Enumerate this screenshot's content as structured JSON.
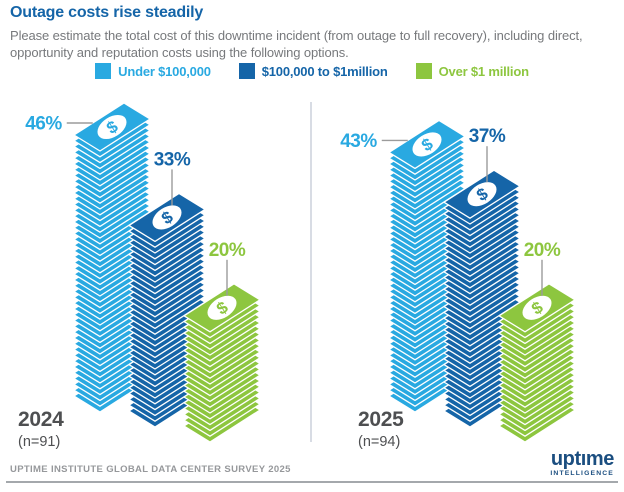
{
  "header": {
    "title": "Outage costs rise steadily",
    "subtitle": "Please estimate the total cost of this downtime incident (from outage to full recovery), including direct, opportunity and reputation costs using the following options."
  },
  "legend": [
    {
      "label": "Under $100,000",
      "color": "#29A9E1"
    },
    {
      "label": "$100,000 to $1million",
      "color": "#1565A8"
    },
    {
      "label": "Over $1 million",
      "color": "#8DC63F"
    }
  ],
  "chart_data": {
    "type": "bar",
    "variant": "isometric-money-stacks",
    "title": "Outage costs rise steadily",
    "unit": "%",
    "categories": [
      "Under $100,000",
      "$100,000 to $1million",
      "Over $1 million"
    ],
    "colors": [
      "#29A9E1",
      "#1565A8",
      "#8DC63F"
    ],
    "series": [
      {
        "name": "2024",
        "n_label": "(n=91)",
        "values": [
          46,
          33,
          20
        ]
      },
      {
        "name": "2025",
        "n_label": "(n=94)",
        "values": [
          43,
          37,
          20
        ]
      }
    ],
    "ylim": [
      0,
      50
    ],
    "grid": false,
    "legend_position": "top",
    "divider_between_groups": true
  },
  "footer": {
    "source": "UPTIME INSTITUTE GLOBAL DATA CENTER SURVEY 2025",
    "logo": {
      "brand": "uptıme",
      "tagline": "INTELLIGENCE"
    }
  }
}
